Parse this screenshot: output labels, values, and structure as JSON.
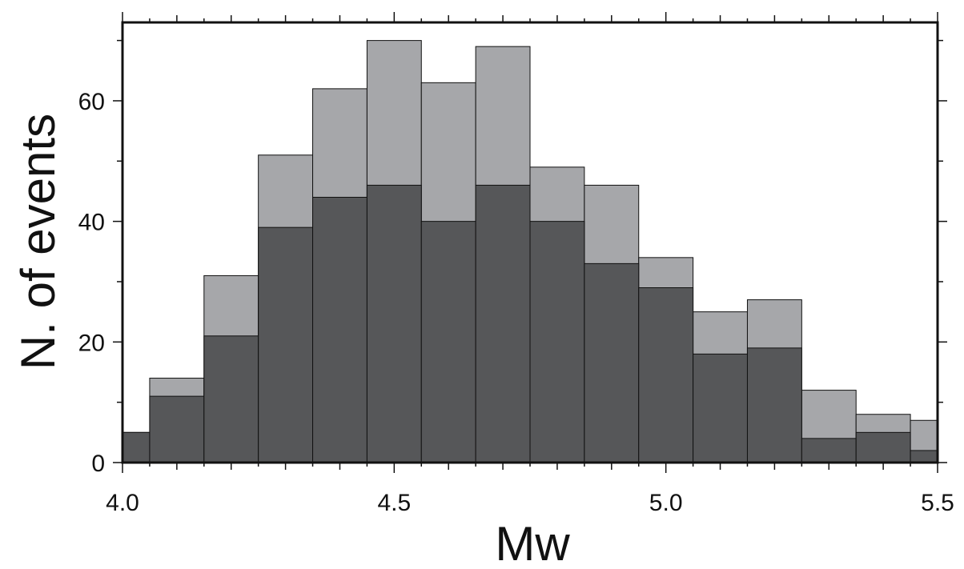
{
  "chart_data": {
    "type": "bar",
    "title": "",
    "xlabel": "Mw",
    "ylabel": "N. of events",
    "xlim": [
      4.0,
      5.5
    ],
    "ylim": [
      0,
      73
    ],
    "bin_edges": [
      4.0,
      4.05,
      4.15,
      4.25,
      4.35,
      4.45,
      4.55,
      4.65,
      4.75,
      4.85,
      4.95,
      5.05,
      5.15,
      5.25,
      5.35,
      5.45,
      5.5
    ],
    "x_ticks": [
      {
        "value": 4.0,
        "label": "4.0"
      },
      {
        "value": 4.5,
        "label": "4.5"
      },
      {
        "value": 5.0,
        "label": "5.0"
      },
      {
        "value": 5.5,
        "label": "5.5"
      }
    ],
    "y_ticks": [
      {
        "value": 0,
        "label": "0"
      },
      {
        "value": 20,
        "label": "20"
      },
      {
        "value": 40,
        "label": "40"
      },
      {
        "value": 60,
        "label": "60"
      }
    ],
    "series": [
      {
        "color": "#a6a7aa",
        "values": [
          5,
          14,
          31,
          51,
          62,
          70,
          63,
          69,
          49,
          46,
          34,
          25,
          27,
          12,
          8,
          7
        ]
      },
      {
        "color": "#565759",
        "values": [
          5,
          11,
          21,
          39,
          44,
          46,
          40,
          46,
          40,
          33,
          29,
          18,
          19,
          4,
          5,
          2
        ]
      }
    ],
    "grid": false,
    "legend": "none"
  }
}
